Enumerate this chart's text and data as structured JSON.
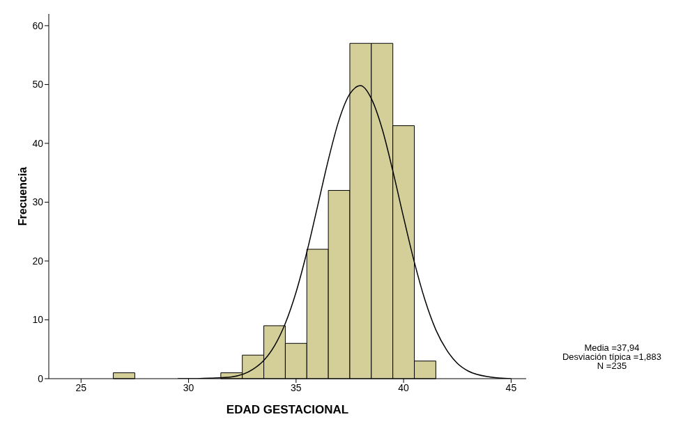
{
  "chart_data": {
    "type": "histogram",
    "xlabel": "EDAD GESTACIONAL",
    "ylabel": "Frecuencia",
    "bins": [
      26.5,
      27.5,
      28.5,
      29.5,
      30.5,
      31.5,
      32.5,
      33.5,
      34.5,
      35.5,
      36.5,
      37.5,
      38.5,
      39.5,
      40.5,
      41.5
    ],
    "values": [
      1,
      0,
      0,
      0,
      0,
      1,
      4,
      9,
      6,
      22,
      32,
      57,
      57,
      43,
      3
    ],
    "color": "#d4cf98",
    "series": [
      {
        "type": "line",
        "color": "#000000",
        "x": [
          29.5,
          30,
          31,
          32,
          33,
          33.5,
          34,
          34.5,
          35,
          35.5,
          36,
          36.5,
          37,
          37.5,
          38,
          38.5,
          39,
          39.5,
          40,
          40.5,
          41,
          41.5,
          42,
          42.5,
          43,
          44,
          45
        ],
        "values": [
          0,
          0,
          0.1,
          0.3,
          1.6,
          3.1,
          5.6,
          9.4,
          14.7,
          21.5,
          29.3,
          37.2,
          44,
          48.4,
          49.8,
          47.6,
          42.5,
          35.3,
          27.4,
          19.8,
          13.3,
          8.3,
          4.9,
          2.6,
          1.3,
          0.3,
          0
        ]
      }
    ],
    "xlim": [
      23.5,
      45.7
    ],
    "xticks": [
      25,
      30,
      35,
      40,
      45
    ],
    "ylim": [
      0,
      62
    ],
    "yticks": [
      0,
      10,
      20,
      30,
      40,
      50,
      60
    ],
    "annotations": [
      "Media =37,94",
      "Desviación típica =1,883",
      "N =235"
    ]
  }
}
